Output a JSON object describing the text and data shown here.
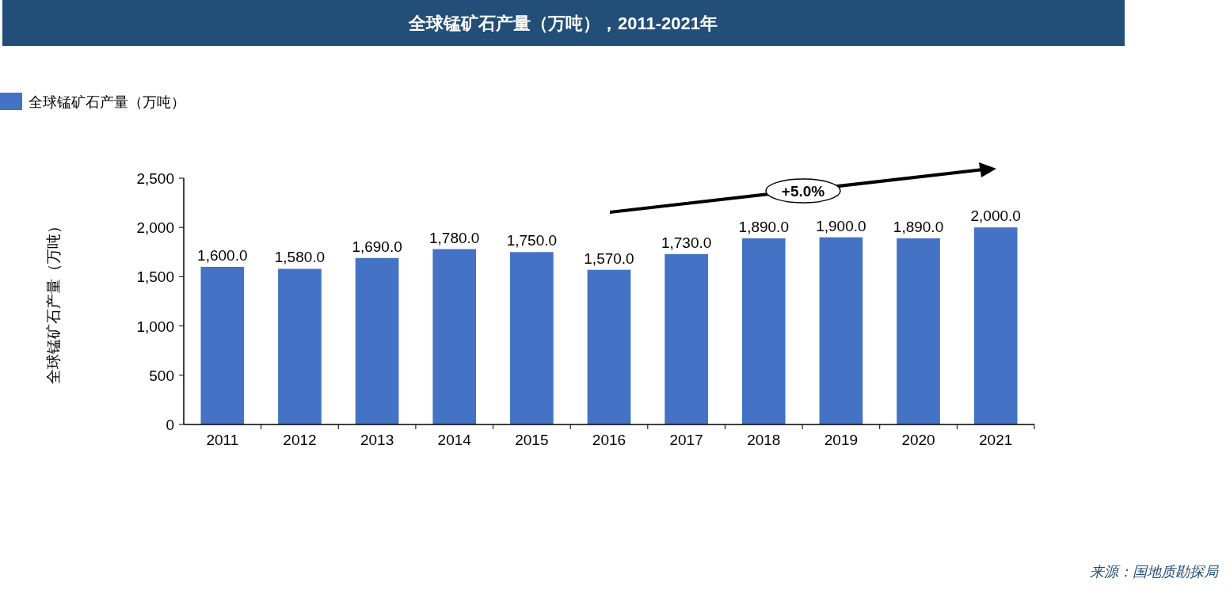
{
  "chart_data": {
    "type": "bar",
    "title": "全球锰矿石产量（万吨），2011-2021年",
    "ylabel": "全球锰矿石产量（万吨）",
    "categories": [
      "2011",
      "2012",
      "2013",
      "2014",
      "2015",
      "2016",
      "2017",
      "2018",
      "2019",
      "2020",
      "2021"
    ],
    "series": [
      {
        "name": "全球锰矿石产量（万吨）",
        "color": "#4472c4",
        "values": [
          1600,
          1580,
          1690,
          1780,
          1750,
          1570,
          1730,
          1890,
          1900,
          1890,
          2000
        ],
        "value_labels": [
          "1,600.0",
          "1,580.0",
          "1,690.0",
          "1,780.0",
          "1,750.0",
          "1,570.0",
          "1,730.0",
          "1,890.0",
          "1,900.0",
          "1,890.0",
          "2,000.0"
        ]
      }
    ],
    "ylim": [
      0,
      2500
    ],
    "yticks": [
      0,
      {
        "value": 500,
        "label": "500"
      },
      {
        "value": 1000,
        "label": "1,000"
      },
      {
        "value": 1500,
        "label": "1,500"
      },
      {
        "value": 2000,
        "label": "2,000"
      },
      {
        "value": 2500,
        "label": "2,500"
      }
    ],
    "legend": "top left",
    "grid": false,
    "annotations": [
      "+5.0%",
      "来源：国地质勘探局"
    ]
  }
}
